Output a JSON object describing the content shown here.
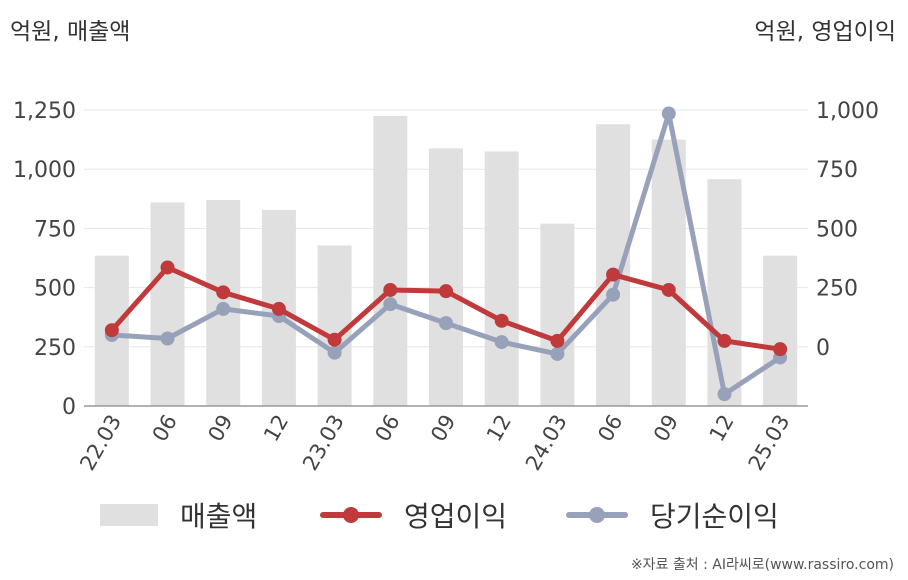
{
  "units": {
    "left": "억원, 매출액",
    "right": "억원, 영업이익"
  },
  "source": "※자료 출처 : AI라씨로(www.rassiro.com)",
  "colors": {
    "revenue": "#e0e0e0",
    "operating_profit": "#c0393b",
    "net_profit": "#97a1b9",
    "grid": "#e6e6e6",
    "axis": "#999999"
  },
  "legend": [
    {
      "label": "매출액",
      "type": "bar"
    },
    {
      "label": "영업이익",
      "type": "line"
    },
    {
      "label": "당기순이익",
      "type": "line"
    }
  ],
  "chart_data": {
    "type": "bar",
    "categories": [
      "22.03",
      "06",
      "09",
      "12",
      "23.03",
      "06",
      "09",
      "12",
      "24.03",
      "06",
      "09",
      "12",
      "25.03"
    ],
    "y_left": {
      "label": "억원, 매출액",
      "ticks": [
        0,
        250,
        500,
        750,
        1000,
        1250
      ],
      "tick_labels": [
        "0",
        "250",
        "500",
        "750",
        "1,000",
        "1,250"
      ],
      "range": [
        0,
        1250
      ]
    },
    "y_right": {
      "label": "억원, 영업이익",
      "ticks": [
        0,
        250,
        500,
        750,
        1000
      ],
      "tick_labels": [
        "0",
        "250",
        "500",
        "750",
        "1,000"
      ],
      "range": [
        -250,
        1000
      ]
    },
    "series": [
      {
        "name": "매출액",
        "type": "bar",
        "axis": "left",
        "values": [
          635,
          860,
          870,
          828,
          678,
          1225,
          1088,
          1075,
          770,
          1190,
          1125,
          958,
          635
        ]
      },
      {
        "name": "영업이익",
        "type": "line",
        "axis": "right",
        "values": [
          70,
          335,
          230,
          160,
          30,
          240,
          235,
          110,
          25,
          305,
          240,
          25,
          -10
        ]
      },
      {
        "name": "당기순이익",
        "type": "line",
        "axis": "right",
        "values": [
          50,
          35,
          160,
          130,
          -25,
          180,
          100,
          20,
          -30,
          220,
          985,
          -200,
          -45
        ]
      }
    ],
    "grid": true,
    "legend_position": "bottom"
  }
}
